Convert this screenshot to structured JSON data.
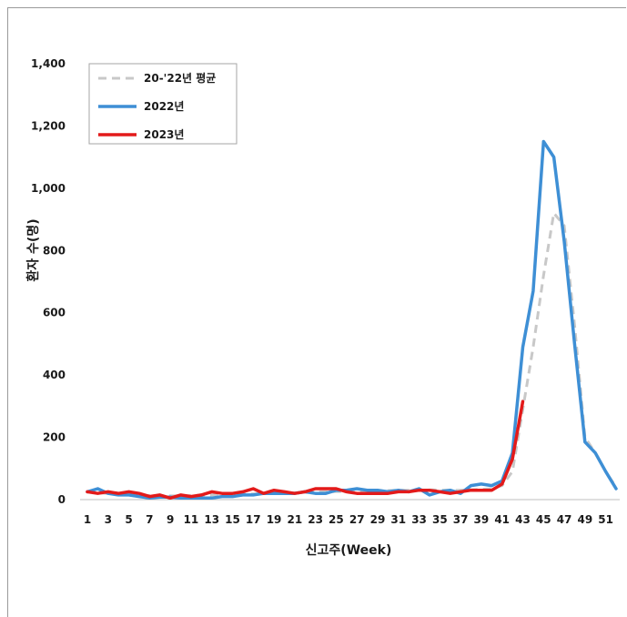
{
  "chart_data": {
    "type": "line",
    "xlabel": "신고주(Week)",
    "ylabel": "환자 수(명)",
    "ylim": [
      0,
      1400
    ],
    "xlim": [
      1,
      52
    ],
    "y_ticks": [
      "0",
      "200",
      "400",
      "600",
      "800",
      "1,000",
      "1,200",
      "1,400"
    ],
    "y_tick_values": [
      0,
      200,
      400,
      600,
      800,
      1000,
      1200,
      1400
    ],
    "x_ticks": [
      1,
      3,
      5,
      7,
      9,
      11,
      13,
      15,
      17,
      19,
      21,
      23,
      25,
      27,
      29,
      31,
      33,
      35,
      37,
      39,
      41,
      43,
      45,
      47,
      49,
      51
    ],
    "grid": false,
    "legend_position": "top-left",
    "series": [
      {
        "name": "20-'22년 평균",
        "color": "#c8c8c8",
        "style": "dashed",
        "x": [
          1,
          2,
          3,
          4,
          5,
          6,
          7,
          8,
          9,
          10,
          11,
          12,
          13,
          14,
          15,
          16,
          17,
          18,
          19,
          20,
          21,
          22,
          23,
          24,
          25,
          26,
          27,
          28,
          29,
          30,
          31,
          32,
          33,
          34,
          35,
          36,
          37,
          38,
          39,
          40,
          41,
          42,
          43,
          44,
          45,
          46,
          47,
          48,
          49,
          50,
          51,
          52
        ],
        "values": [
          25,
          22,
          20,
          18,
          17,
          15,
          13,
          12,
          12,
          12,
          13,
          14,
          15,
          16,
          17,
          18,
          18,
          19,
          20,
          21,
          22,
          23,
          24,
          25,
          26,
          26,
          27,
          28,
          28,
          29,
          30,
          30,
          31,
          31,
          31,
          30,
          30,
          32,
          33,
          35,
          45,
          90,
          290,
          490,
          720,
          920,
          880,
          560,
          200,
          150,
          90,
          40
        ]
      },
      {
        "name": "2022년",
        "color": "#3e8fd5",
        "style": "solid",
        "x": [
          1,
          2,
          3,
          4,
          5,
          6,
          7,
          8,
          9,
          10,
          11,
          12,
          13,
          14,
          15,
          16,
          17,
          18,
          19,
          20,
          21,
          22,
          23,
          24,
          25,
          26,
          27,
          28,
          29,
          30,
          31,
          32,
          33,
          34,
          35,
          36,
          37,
          38,
          39,
          40,
          41,
          42,
          43,
          44,
          45,
          46,
          47,
          48,
          49,
          50,
          51,
          52
        ],
        "values": [
          25,
          35,
          20,
          15,
          15,
          10,
          5,
          8,
          8,
          5,
          5,
          5,
          5,
          10,
          10,
          15,
          15,
          20,
          20,
          20,
          20,
          25,
          20,
          20,
          30,
          30,
          35,
          30,
          30,
          25,
          30,
          25,
          35,
          15,
          25,
          30,
          20,
          45,
          50,
          45,
          60,
          150,
          490,
          670,
          1150,
          1100,
          830,
          500,
          185,
          150,
          90,
          35
        ]
      },
      {
        "name": "2023년",
        "color": "#e31a1a",
        "style": "solid",
        "x": [
          1,
          2,
          3,
          4,
          5,
          6,
          7,
          8,
          9,
          10,
          11,
          12,
          13,
          14,
          15,
          16,
          17,
          18,
          19,
          20,
          21,
          22,
          23,
          24,
          25,
          26,
          27,
          28,
          29,
          30,
          31,
          32,
          33,
          34,
          35,
          36,
          37,
          38,
          39,
          40,
          41,
          42,
          43
        ],
        "values": [
          25,
          20,
          25,
          20,
          25,
          20,
          10,
          15,
          5,
          15,
          10,
          15,
          25,
          20,
          20,
          25,
          35,
          20,
          30,
          25,
          20,
          25,
          35,
          35,
          35,
          25,
          20,
          20,
          20,
          20,
          25,
          25,
          30,
          30,
          25,
          20,
          25,
          30,
          30,
          30,
          50,
          130,
          315
        ]
      }
    ]
  }
}
